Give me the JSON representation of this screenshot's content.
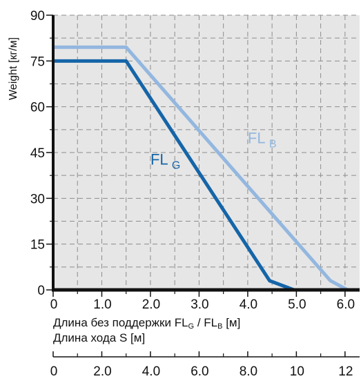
{
  "chart_data": {
    "type": "line",
    "ylabel": "Weight  [кг/м]",
    "xlabel_line1": {
      "prefix": "Длина без поддержки FL",
      "sub1": "G",
      "mid": " / FL",
      "sub2": "B",
      "suffix": " [м]"
    },
    "xlabel_line2": "Длина хода S   [м]",
    "xlim": [
      0,
      6.3
    ],
    "ylim": [
      0,
      90
    ],
    "x_ticks": [
      "0",
      "1.0",
      "2.0",
      "3.0",
      "4.0",
      "5.0",
      "6.0"
    ],
    "x_tick_values": [
      0,
      1,
      2,
      3,
      4,
      5,
      6
    ],
    "y_ticks": [
      "0",
      "15",
      "30",
      "45",
      "60",
      "75",
      "90"
    ],
    "y_tick_values": [
      0,
      15,
      30,
      45,
      60,
      75,
      90
    ],
    "grid": true,
    "secondary_axis": {
      "label": "",
      "ticks": [
        "0",
        "2.0",
        "4.0",
        "6.0",
        "8.0",
        "10",
        "12"
      ],
      "tick_values": [
        0,
        2,
        4,
        6,
        8,
        10,
        12
      ],
      "xlim": [
        0,
        12.6
      ]
    },
    "series": [
      {
        "name": "FL G",
        "label_main": "FL",
        "label_sub": "G",
        "color": "#1565a8",
        "x": [
          0,
          1.5,
          4.45,
          4.95
        ],
        "y": [
          75,
          75,
          3,
          0
        ],
        "label_at": [
          2.0,
          41
        ]
      },
      {
        "name": "FL B",
        "label_main": "FL",
        "label_sub": "B",
        "color": "#93b7df",
        "x": [
          0,
          1.5,
          5.7,
          6.05
        ],
        "y": [
          79.5,
          79.5,
          3,
          0
        ],
        "label_at": [
          4.0,
          48
        ]
      }
    ],
    "colors": {
      "plot_bg": "#e6e6e6",
      "grid": "#8c8c8c",
      "axis": "#111111"
    }
  }
}
